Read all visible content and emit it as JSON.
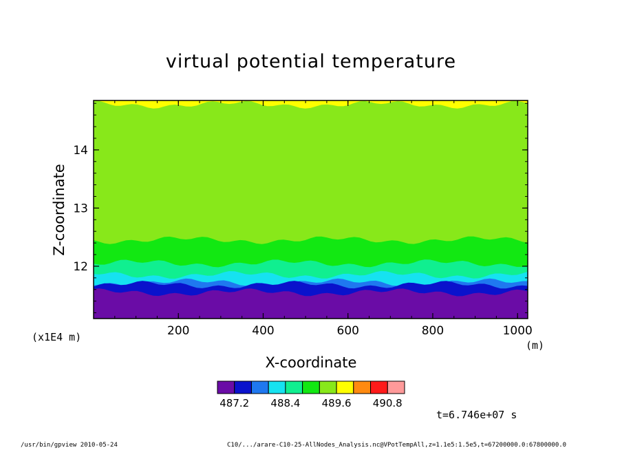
{
  "footer": {
    "left": "/usr/bin/gpview   2010-05-24",
    "right": "C10/.../arare-C10-25-AllNodes_Analysis.nc@VPotTempAll,z=1.1e5:1.5e5,t=67200000.0:67800000.0"
  },
  "time_label": "t=6.746e+07 s",
  "chart_data": {
    "type": "heatmap",
    "title": "virtual potential temperature",
    "xlabel": "X-coordinate",
    "ylabel": "Z-coordinate",
    "x_unit": "(m)",
    "y_scale_note": "(x1E4 m)",
    "xlim": [
      0,
      1024
    ],
    "ylim": [
      11.1,
      14.85
    ],
    "x_ticks": [
      200,
      400,
      600,
      800,
      1000
    ],
    "y_ticks": [
      12,
      13,
      14
    ],
    "colorbar": {
      "levels": [
        486.8,
        487.2,
        487.6,
        488.0,
        488.4,
        488.8,
        489.2,
        489.6,
        490.0,
        490.4,
        490.8,
        491.2
      ],
      "tick_labels": [
        "487.2",
        "488.4",
        "489.6",
        "490.8"
      ],
      "colors": [
        "#6a0ca6",
        "#0a12cc",
        "#1f78f0",
        "#16e2f0",
        "#10ef90",
        "#12e812",
        "#88e81a",
        "#ffff00",
        "#ff8a10",
        "#ff1a1a",
        "#ff9a9a"
      ]
    },
    "bands": [
      {
        "value_range": [
          486.8,
          487.2
        ],
        "color": "#6a0ca6",
        "z_top": 11.55
      },
      {
        "value_range": [
          487.2,
          487.6
        ],
        "color": "#0a12cc",
        "z_top": 11.68
      },
      {
        "value_range": [
          487.6,
          488.0
        ],
        "color": "#1f78f0",
        "z_top": 11.72
      },
      {
        "value_range": [
          488.0,
          488.4
        ],
        "color": "#16e2f0",
        "z_top": 11.85
      },
      {
        "value_range": [
          488.4,
          488.8
        ],
        "color": "#10ef90",
        "z_top": 12.05
      },
      {
        "value_range": [
          488.8,
          489.2
        ],
        "color": "#12e812",
        "z_top": 12.45
      },
      {
        "value_range": [
          489.2,
          489.6
        ],
        "color": "#88e81a",
        "z_top": 14.78
      },
      {
        "value_range": [
          489.6,
          490.0
        ],
        "color": "#ffff00",
        "z_top": 14.85
      }
    ]
  }
}
